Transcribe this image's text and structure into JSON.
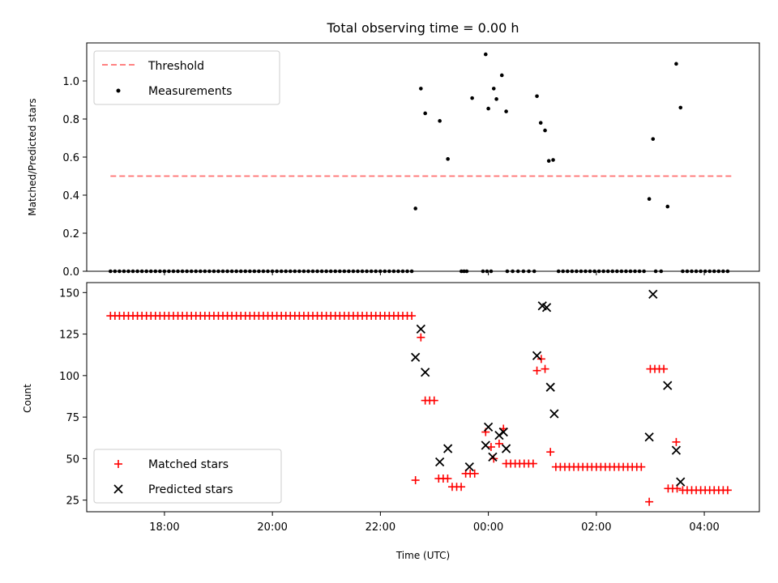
{
  "chart_data": [
    {
      "type": "scatter",
      "title": "Total observing time = 0.00 h",
      "ylabel": "Matched/Predicted stars",
      "xlim": [
        16.56,
        5.02
      ],
      "ylim": [
        0,
        1.2
      ],
      "yticks": [
        0.0,
        0.2,
        0.4,
        0.6,
        0.8,
        1.0
      ],
      "ytick_labels": [
        "0.0",
        "0.2",
        "0.4",
        "0.6",
        "0.8",
        "1.0"
      ],
      "legend_position": "top-left",
      "threshold": {
        "name": "Threshold",
        "value": 0.5,
        "x_range": [
          17.0,
          4.5
        ],
        "color": "#ff7070"
      },
      "series": [
        {
          "name": "Measurements",
          "color": "#000000",
          "marker": "dot",
          "segments": [
            {
              "start": 17.0,
              "end": 22.6,
              "step": 0.0833,
              "y": 0
            },
            {
              "start": 23.5,
              "end": 23.6,
              "step": 0.05,
              "y": 0
            },
            {
              "start": 23.9,
              "end": 24.05,
              "step": 0.075,
              "y": 0
            },
            {
              "start": 0.35,
              "end": 0.85,
              "step": 0.1,
              "y": 0
            },
            {
              "start": 1.3,
              "end": 2.95,
              "step": 0.0833,
              "y": 0
            },
            {
              "start": 3.1,
              "end": 3.2,
              "step": 0.1,
              "y": 0
            },
            {
              "start": 3.6,
              "end": 4.5,
              "step": 0.0833,
              "y": 0
            }
          ],
          "points": [
            [
              22.65,
              0.33
            ],
            [
              22.75,
              0.96
            ],
            [
              22.83,
              0.83
            ],
            [
              23.1,
              0.79
            ],
            [
              23.25,
              0.59
            ],
            [
              23.7,
              0.91
            ],
            [
              23.95,
              1.14
            ],
            [
              24.0,
              0.855
            ],
            [
              24.1,
              0.96
            ],
            [
              24.15,
              0.905
            ],
            [
              24.25,
              1.03
            ],
            [
              24.33,
              0.84
            ],
            [
              24.9,
              0.92
            ],
            [
              24.97,
              0.78
            ],
            [
              25.05,
              0.74
            ],
            [
              25.12,
              0.58
            ],
            [
              25.2,
              0.585
            ],
            [
              26.98,
              0.38
            ],
            [
              27.05,
              0.695
            ],
            [
              27.32,
              0.34
            ],
            [
              27.48,
              1.09
            ],
            [
              27.56,
              0.86
            ]
          ]
        }
      ]
    },
    {
      "type": "scatter",
      "xlabel": "Time (UTC)",
      "ylabel": "Count",
      "xlim": [
        16.56,
        5.02
      ],
      "ylim": [
        18,
        156
      ],
      "yticks": [
        25,
        50,
        75,
        100,
        125,
        150
      ],
      "ytick_labels": [
        "25",
        "50",
        "75",
        "100",
        "125",
        "150"
      ],
      "xticks": [
        18,
        20,
        22,
        24,
        26,
        28
      ],
      "xtick_labels": [
        "18:00",
        "20:00",
        "22:00",
        "00:00",
        "02:00",
        "04:00"
      ],
      "legend_position": "bottom-left",
      "series": [
        {
          "name": "Matched stars",
          "color": "#ff0000",
          "marker": "plus",
          "segments": [
            {
              "start": 17.0,
              "end": 22.6,
              "step": 0.0833,
              "y": 136
            },
            {
              "start": 22.83,
              "end": 23.0,
              "step": 0.0833,
              "y": 85
            },
            {
              "start": 23.08,
              "end": 23.25,
              "step": 0.0833,
              "y": 38
            },
            {
              "start": 23.33,
              "end": 23.5,
              "step": 0.0833,
              "y": 33
            },
            {
              "start": 23.58,
              "end": 23.8,
              "step": 0.0833,
              "y": 41
            },
            {
              "start": 24.33,
              "end": 24.83,
              "step": 0.0833,
              "y": 47
            },
            {
              "start": 25.25,
              "end": 26.9,
              "step": 0.0833,
              "y": 45
            },
            {
              "start": 27.0,
              "end": 27.25,
              "step": 0.0833,
              "y": 104
            },
            {
              "start": 27.33,
              "end": 27.5,
              "step": 0.0833,
              "y": 32
            },
            {
              "start": 27.6,
              "end": 28.5,
              "step": 0.0833,
              "y": 31
            }
          ],
          "points": [
            [
              22.65,
              37
            ],
            [
              22.75,
              123
            ],
            [
              23.95,
              66
            ],
            [
              24.05,
              57
            ],
            [
              24.1,
              50
            ],
            [
              24.2,
              59
            ],
            [
              24.28,
              68
            ],
            [
              24.9,
              103
            ],
            [
              24.98,
              110
            ],
            [
              25.05,
              104
            ],
            [
              25.15,
              54
            ],
            [
              26.98,
              24
            ],
            [
              27.48,
              60
            ]
          ]
        },
        {
          "name": "Predicted stars",
          "color": "#000000",
          "marker": "x",
          "points": [
            [
              22.65,
              111
            ],
            [
              22.75,
              128
            ],
            [
              22.83,
              102
            ],
            [
              23.1,
              48
            ],
            [
              23.25,
              56
            ],
            [
              23.65,
              45
            ],
            [
              23.95,
              58
            ],
            [
              24.0,
              69
            ],
            [
              24.08,
              51
            ],
            [
              24.2,
              64
            ],
            [
              24.28,
              66
            ],
            [
              24.33,
              56
            ],
            [
              24.9,
              112
            ],
            [
              25.0,
              142
            ],
            [
              25.08,
              141
            ],
            [
              25.15,
              93
            ],
            [
              25.22,
              77
            ],
            [
              26.98,
              63
            ],
            [
              27.05,
              149
            ],
            [
              27.32,
              94
            ],
            [
              27.48,
              55
            ],
            [
              27.56,
              36
            ]
          ]
        }
      ]
    }
  ]
}
